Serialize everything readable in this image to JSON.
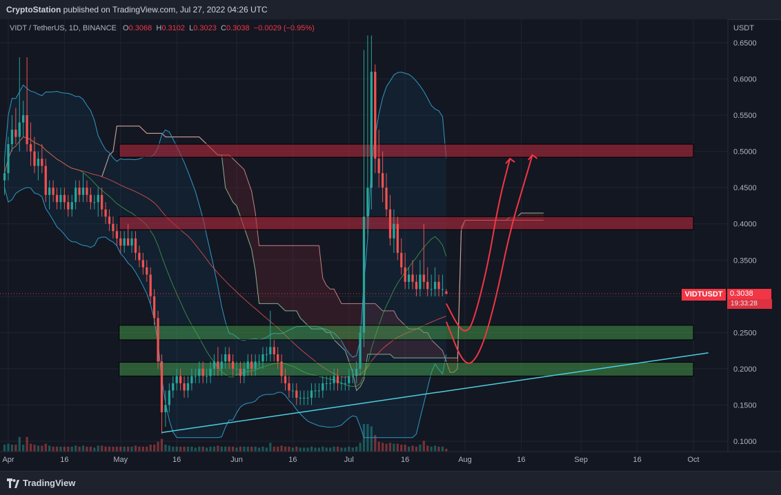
{
  "header": {
    "publisher": "CryptoStation",
    "published_text": " published on TradingView.com, Jul 27, 2022 04:26 UTC"
  },
  "legend": {
    "symbol": "VIDT / TetherUS, 1D, BINANCE",
    "open_label": "O",
    "open": "0.3068",
    "high_label": "H",
    "high": "0.3102",
    "low_label": "L",
    "low": "0.3023",
    "close_label": "C",
    "close": "0.3038",
    "change": "−0.0029 (−0.95%)"
  },
  "price_axis": {
    "unit": "USDT",
    "ticks": [
      "0.6500",
      "0.6000",
      "0.5500",
      "0.5000",
      "0.4500",
      "0.4000",
      "0.3500",
      "0.3000",
      "0.2500",
      "0.2000",
      "0.1500",
      "0.1000"
    ]
  },
  "time_axis": {
    "ticks": [
      "Apr",
      "16",
      "May",
      "16",
      "Jun",
      "16",
      "Jul",
      "16",
      "Aug",
      "16",
      "Sep",
      "16",
      "Oct"
    ]
  },
  "last_price": {
    "symbol": "VIDTUSDT",
    "value": "0.3038",
    "countdown": "19:33:28"
  },
  "footer": {
    "brand": "TradingView"
  },
  "colors": {
    "background": "#131722",
    "up": "#26a69a",
    "down": "#ef5350",
    "resistance_zone": "#b2283a",
    "support_zone": "#4caf50",
    "bollinger": "#2f9ac4",
    "trendline": "#4dd0e1",
    "projection": "#f23645"
  },
  "chart_data": {
    "type": "candlestick",
    "symbol": "VIDT / TetherUS",
    "interval": "1D",
    "exchange": "BINANCE",
    "ylim": [
      0.09,
      0.67
    ],
    "x_range": [
      "2022-03-31",
      "2022-10-05"
    ],
    "candles": [
      {
        "date": "2022-03-31",
        "o": 0.46,
        "h": 0.49,
        "l": 0.44,
        "c": 0.47
      },
      {
        "date": "2022-04-01",
        "o": 0.47,
        "h": 0.52,
        "l": 0.46,
        "c": 0.51
      },
      {
        "date": "2022-04-02",
        "o": 0.51,
        "h": 0.55,
        "l": 0.5,
        "c": 0.53
      },
      {
        "date": "2022-04-03",
        "o": 0.53,
        "h": 0.56,
        "l": 0.51,
        "c": 0.52
      },
      {
        "date": "2022-04-04",
        "o": 0.52,
        "h": 0.63,
        "l": 0.5,
        "c": 0.54
      },
      {
        "date": "2022-04-05",
        "o": 0.54,
        "h": 0.57,
        "l": 0.52,
        "c": 0.55
      },
      {
        "date": "2022-04-06",
        "o": 0.55,
        "h": 0.63,
        "l": 0.5,
        "c": 0.51
      },
      {
        "date": "2022-04-07",
        "o": 0.51,
        "h": 0.54,
        "l": 0.48,
        "c": 0.5
      },
      {
        "date": "2022-04-08",
        "o": 0.5,
        "h": 0.52,
        "l": 0.47,
        "c": 0.48
      },
      {
        "date": "2022-04-09",
        "o": 0.48,
        "h": 0.5,
        "l": 0.46,
        "c": 0.49
      },
      {
        "date": "2022-04-10",
        "o": 0.49,
        "h": 0.51,
        "l": 0.47,
        "c": 0.48
      },
      {
        "date": "2022-04-11",
        "o": 0.48,
        "h": 0.49,
        "l": 0.43,
        "c": 0.44
      },
      {
        "date": "2022-04-12",
        "o": 0.44,
        "h": 0.46,
        "l": 0.42,
        "c": 0.45
      },
      {
        "date": "2022-04-13",
        "o": 0.45,
        "h": 0.46,
        "l": 0.43,
        "c": 0.44
      },
      {
        "date": "2022-04-14",
        "o": 0.44,
        "h": 0.45,
        "l": 0.42,
        "c": 0.43
      },
      {
        "date": "2022-04-15",
        "o": 0.43,
        "h": 0.45,
        "l": 0.42,
        "c": 0.44
      },
      {
        "date": "2022-04-16",
        "o": 0.44,
        "h": 0.45,
        "l": 0.42,
        "c": 0.43
      },
      {
        "date": "2022-04-17",
        "o": 0.43,
        "h": 0.44,
        "l": 0.41,
        "c": 0.42
      },
      {
        "date": "2022-04-18",
        "o": 0.42,
        "h": 0.44,
        "l": 0.41,
        "c": 0.43
      },
      {
        "date": "2022-04-19",
        "o": 0.43,
        "h": 0.46,
        "l": 0.42,
        "c": 0.45
      },
      {
        "date": "2022-04-20",
        "o": 0.45,
        "h": 0.46,
        "l": 0.43,
        "c": 0.44
      },
      {
        "date": "2022-04-21",
        "o": 0.44,
        "h": 0.47,
        "l": 0.43,
        "c": 0.45
      },
      {
        "date": "2022-04-22",
        "o": 0.45,
        "h": 0.46,
        "l": 0.43,
        "c": 0.44
      },
      {
        "date": "2022-04-23",
        "o": 0.44,
        "h": 0.45,
        "l": 0.42,
        "c": 0.43
      },
      {
        "date": "2022-04-24",
        "o": 0.43,
        "h": 0.44,
        "l": 0.42,
        "c": 0.43
      },
      {
        "date": "2022-04-25",
        "o": 0.43,
        "h": 0.45,
        "l": 0.41,
        "c": 0.44
      },
      {
        "date": "2022-04-26",
        "o": 0.44,
        "h": 0.45,
        "l": 0.41,
        "c": 0.42
      },
      {
        "date": "2022-04-27",
        "o": 0.42,
        "h": 0.43,
        "l": 0.4,
        "c": 0.41
      },
      {
        "date": "2022-04-28",
        "o": 0.41,
        "h": 0.42,
        "l": 0.39,
        "c": 0.4
      },
      {
        "date": "2022-04-29",
        "o": 0.4,
        "h": 0.41,
        "l": 0.38,
        "c": 0.39
      },
      {
        "date": "2022-04-30",
        "o": 0.39,
        "h": 0.4,
        "l": 0.37,
        "c": 0.38
      },
      {
        "date": "2022-05-01",
        "o": 0.38,
        "h": 0.39,
        "l": 0.36,
        "c": 0.37
      },
      {
        "date": "2022-05-02",
        "o": 0.37,
        "h": 0.39,
        "l": 0.36,
        "c": 0.38
      },
      {
        "date": "2022-05-03",
        "o": 0.38,
        "h": 0.4,
        "l": 0.37,
        "c": 0.37
      },
      {
        "date": "2022-05-04",
        "o": 0.37,
        "h": 0.39,
        "l": 0.36,
        "c": 0.38
      },
      {
        "date": "2022-05-05",
        "o": 0.38,
        "h": 0.39,
        "l": 0.35,
        "c": 0.36
      },
      {
        "date": "2022-05-06",
        "o": 0.36,
        "h": 0.37,
        "l": 0.34,
        "c": 0.35
      },
      {
        "date": "2022-05-07",
        "o": 0.35,
        "h": 0.36,
        "l": 0.33,
        "c": 0.34
      },
      {
        "date": "2022-05-08",
        "o": 0.34,
        "h": 0.35,
        "l": 0.32,
        "c": 0.33
      },
      {
        "date": "2022-05-09",
        "o": 0.33,
        "h": 0.34,
        "l": 0.29,
        "c": 0.3
      },
      {
        "date": "2022-05-10",
        "o": 0.3,
        "h": 0.31,
        "l": 0.26,
        "c": 0.27
      },
      {
        "date": "2022-05-11",
        "o": 0.27,
        "h": 0.28,
        "l": 0.2,
        "c": 0.21
      },
      {
        "date": "2022-05-12",
        "o": 0.21,
        "h": 0.22,
        "l": 0.11,
        "c": 0.14
      },
      {
        "date": "2022-05-13",
        "o": 0.14,
        "h": 0.17,
        "l": 0.12,
        "c": 0.15
      },
      {
        "date": "2022-05-14",
        "o": 0.15,
        "h": 0.18,
        "l": 0.14,
        "c": 0.17
      },
      {
        "date": "2022-05-15",
        "o": 0.17,
        "h": 0.19,
        "l": 0.16,
        "c": 0.18
      },
      {
        "date": "2022-05-16",
        "o": 0.18,
        "h": 0.2,
        "l": 0.17,
        "c": 0.19
      },
      {
        "date": "2022-05-17",
        "o": 0.19,
        "h": 0.2,
        "l": 0.17,
        "c": 0.18
      },
      {
        "date": "2022-05-18",
        "o": 0.18,
        "h": 0.19,
        "l": 0.16,
        "c": 0.17
      },
      {
        "date": "2022-05-19",
        "o": 0.17,
        "h": 0.19,
        "l": 0.16,
        "c": 0.18
      },
      {
        "date": "2022-05-20",
        "o": 0.18,
        "h": 0.2,
        "l": 0.17,
        "c": 0.19
      },
      {
        "date": "2022-05-21",
        "o": 0.19,
        "h": 0.2,
        "l": 0.18,
        "c": 0.19
      },
      {
        "date": "2022-05-22",
        "o": 0.19,
        "h": 0.21,
        "l": 0.18,
        "c": 0.2
      },
      {
        "date": "2022-05-23",
        "o": 0.2,
        "h": 0.21,
        "l": 0.18,
        "c": 0.19
      },
      {
        "date": "2022-05-24",
        "o": 0.19,
        "h": 0.2,
        "l": 0.18,
        "c": 0.19
      },
      {
        "date": "2022-05-25",
        "o": 0.19,
        "h": 0.21,
        "l": 0.18,
        "c": 0.2
      },
      {
        "date": "2022-05-26",
        "o": 0.2,
        "h": 0.22,
        "l": 0.19,
        "c": 0.21
      },
      {
        "date": "2022-05-27",
        "o": 0.21,
        "h": 0.23,
        "l": 0.19,
        "c": 0.2
      },
      {
        "date": "2022-05-28",
        "o": 0.2,
        "h": 0.22,
        "l": 0.19,
        "c": 0.21
      },
      {
        "date": "2022-05-29",
        "o": 0.21,
        "h": 0.23,
        "l": 0.2,
        "c": 0.22
      },
      {
        "date": "2022-05-30",
        "o": 0.22,
        "h": 0.23,
        "l": 0.2,
        "c": 0.21
      },
      {
        "date": "2022-05-31",
        "o": 0.21,
        "h": 0.22,
        "l": 0.19,
        "c": 0.2
      },
      {
        "date": "2022-06-01",
        "o": 0.2,
        "h": 0.21,
        "l": 0.19,
        "c": 0.2
      },
      {
        "date": "2022-06-02",
        "o": 0.2,
        "h": 0.21,
        "l": 0.18,
        "c": 0.19
      },
      {
        "date": "2022-06-03",
        "o": 0.19,
        "h": 0.21,
        "l": 0.18,
        "c": 0.2
      },
      {
        "date": "2022-06-04",
        "o": 0.2,
        "h": 0.22,
        "l": 0.19,
        "c": 0.21
      },
      {
        "date": "2022-06-05",
        "o": 0.21,
        "h": 0.22,
        "l": 0.19,
        "c": 0.2
      },
      {
        "date": "2022-06-06",
        "o": 0.2,
        "h": 0.22,
        "l": 0.19,
        "c": 0.21
      },
      {
        "date": "2022-06-07",
        "o": 0.21,
        "h": 0.22,
        "l": 0.2,
        "c": 0.21
      },
      {
        "date": "2022-06-08",
        "o": 0.21,
        "h": 0.23,
        "l": 0.2,
        "c": 0.22
      },
      {
        "date": "2022-06-09",
        "o": 0.22,
        "h": 0.23,
        "l": 0.21,
        "c": 0.22
      },
      {
        "date": "2022-06-10",
        "o": 0.22,
        "h": 0.28,
        "l": 0.21,
        "c": 0.23
      },
      {
        "date": "2022-06-11",
        "o": 0.23,
        "h": 0.24,
        "l": 0.21,
        "c": 0.22
      },
      {
        "date": "2022-06-12",
        "o": 0.22,
        "h": 0.23,
        "l": 0.2,
        "c": 0.21
      },
      {
        "date": "2022-06-13",
        "o": 0.21,
        "h": 0.22,
        "l": 0.18,
        "c": 0.19
      },
      {
        "date": "2022-06-14",
        "o": 0.19,
        "h": 0.2,
        "l": 0.17,
        "c": 0.18
      },
      {
        "date": "2022-06-15",
        "o": 0.18,
        "h": 0.19,
        "l": 0.16,
        "c": 0.17
      },
      {
        "date": "2022-06-16",
        "o": 0.17,
        "h": 0.18,
        "l": 0.16,
        "c": 0.17
      },
      {
        "date": "2022-06-17",
        "o": 0.17,
        "h": 0.18,
        "l": 0.15,
        "c": 0.16
      },
      {
        "date": "2022-06-18",
        "o": 0.16,
        "h": 0.17,
        "l": 0.15,
        "c": 0.16
      },
      {
        "date": "2022-06-19",
        "o": 0.16,
        "h": 0.17,
        "l": 0.15,
        "c": 0.16
      },
      {
        "date": "2022-06-20",
        "o": 0.16,
        "h": 0.17,
        "l": 0.15,
        "c": 0.16
      },
      {
        "date": "2022-06-21",
        "o": 0.16,
        "h": 0.18,
        "l": 0.15,
        "c": 0.17
      },
      {
        "date": "2022-06-22",
        "o": 0.17,
        "h": 0.18,
        "l": 0.16,
        "c": 0.17
      },
      {
        "date": "2022-06-23",
        "o": 0.17,
        "h": 0.18,
        "l": 0.16,
        "c": 0.17
      },
      {
        "date": "2022-06-24",
        "o": 0.17,
        "h": 0.19,
        "l": 0.16,
        "c": 0.18
      },
      {
        "date": "2022-06-25",
        "o": 0.18,
        "h": 0.19,
        "l": 0.17,
        "c": 0.18
      },
      {
        "date": "2022-06-26",
        "o": 0.18,
        "h": 0.19,
        "l": 0.17,
        "c": 0.18
      },
      {
        "date": "2022-06-27",
        "o": 0.18,
        "h": 0.2,
        "l": 0.17,
        "c": 0.19
      },
      {
        "date": "2022-06-28",
        "o": 0.19,
        "h": 0.2,
        "l": 0.17,
        "c": 0.18
      },
      {
        "date": "2022-06-29",
        "o": 0.18,
        "h": 0.19,
        "l": 0.17,
        "c": 0.18
      },
      {
        "date": "2022-06-30",
        "o": 0.18,
        "h": 0.19,
        "l": 0.17,
        "c": 0.18
      },
      {
        "date": "2022-07-01",
        "o": 0.18,
        "h": 0.2,
        "l": 0.17,
        "c": 0.19
      },
      {
        "date": "2022-07-02",
        "o": 0.19,
        "h": 0.2,
        "l": 0.18,
        "c": 0.19
      },
      {
        "date": "2022-07-03",
        "o": 0.19,
        "h": 0.21,
        "l": 0.18,
        "c": 0.2
      },
      {
        "date": "2022-07-04",
        "o": 0.2,
        "h": 0.26,
        "l": 0.19,
        "c": 0.25
      },
      {
        "date": "2022-07-05",
        "o": 0.25,
        "h": 0.64,
        "l": 0.23,
        "c": 0.41
      },
      {
        "date": "2022-07-06",
        "o": 0.41,
        "h": 0.66,
        "l": 0.38,
        "c": 0.45
      },
      {
        "date": "2022-07-07",
        "o": 0.45,
        "h": 0.66,
        "l": 0.42,
        "c": 0.61
      },
      {
        "date": "2022-07-08",
        "o": 0.61,
        "h": 0.62,
        "l": 0.47,
        "c": 0.49
      },
      {
        "date": "2022-07-09",
        "o": 0.49,
        "h": 0.53,
        "l": 0.45,
        "c": 0.47
      },
      {
        "date": "2022-07-10",
        "o": 0.47,
        "h": 0.5,
        "l": 0.43,
        "c": 0.45
      },
      {
        "date": "2022-07-11",
        "o": 0.45,
        "h": 0.47,
        "l": 0.41,
        "c": 0.42
      },
      {
        "date": "2022-07-12",
        "o": 0.42,
        "h": 0.44,
        "l": 0.37,
        "c": 0.38
      },
      {
        "date": "2022-07-13",
        "o": 0.38,
        "h": 0.42,
        "l": 0.36,
        "c": 0.4
      },
      {
        "date": "2022-07-14",
        "o": 0.4,
        "h": 0.41,
        "l": 0.35,
        "c": 0.36
      },
      {
        "date": "2022-07-15",
        "o": 0.36,
        "h": 0.38,
        "l": 0.33,
        "c": 0.34
      },
      {
        "date": "2022-07-16",
        "o": 0.34,
        "h": 0.36,
        "l": 0.31,
        "c": 0.32
      },
      {
        "date": "2022-07-17",
        "o": 0.32,
        "h": 0.34,
        "l": 0.31,
        "c": 0.33
      },
      {
        "date": "2022-07-18",
        "o": 0.33,
        "h": 0.35,
        "l": 0.31,
        "c": 0.32
      },
      {
        "date": "2022-07-19",
        "o": 0.32,
        "h": 0.33,
        "l": 0.3,
        "c": 0.31
      },
      {
        "date": "2022-07-20",
        "o": 0.31,
        "h": 0.35,
        "l": 0.3,
        "c": 0.33
      },
      {
        "date": "2022-07-21",
        "o": 0.33,
        "h": 0.4,
        "l": 0.31,
        "c": 0.32
      },
      {
        "date": "2022-07-22",
        "o": 0.32,
        "h": 0.34,
        "l": 0.3,
        "c": 0.31
      },
      {
        "date": "2022-07-23",
        "o": 0.31,
        "h": 0.33,
        "l": 0.3,
        "c": 0.31
      },
      {
        "date": "2022-07-24",
        "o": 0.31,
        "h": 0.34,
        "l": 0.3,
        "c": 0.32
      },
      {
        "date": "2022-07-25",
        "o": 0.32,
        "h": 0.33,
        "l": 0.3,
        "c": 0.31
      },
      {
        "date": "2022-07-26",
        "o": 0.31,
        "h": 0.33,
        "l": 0.3,
        "c": 0.31
      },
      {
        "date": "2022-07-27",
        "o": 0.3068,
        "h": 0.3102,
        "l": 0.3023,
        "c": 0.3038
      }
    ],
    "zones": [
      {
        "kind": "resistance",
        "low": 0.492,
        "high": 0.51,
        "from": "2022-05-01",
        "to": "2022-10-01"
      },
      {
        "kind": "resistance",
        "low": 0.392,
        "high": 0.41,
        "from": "2022-05-01",
        "to": "2022-10-01"
      },
      {
        "kind": "support",
        "low": 0.24,
        "high": 0.26,
        "from": "2022-05-01",
        "to": "2022-10-01"
      },
      {
        "kind": "support",
        "low": 0.19,
        "high": 0.209,
        "from": "2022-05-01",
        "to": "2022-10-01"
      }
    ],
    "trendline": {
      "points": [
        [
          "2022-05-12",
          0.112
        ],
        [
          "2022-10-05",
          0.222
        ]
      ]
    },
    "projections": [
      {
        "points": [
          [
            "2022-07-27",
            0.29
          ],
          [
            "2022-07-30",
            0.26
          ],
          [
            "2022-08-01",
            0.25
          ],
          [
            "2022-08-03",
            0.26
          ],
          [
            "2022-08-07",
            0.34
          ],
          [
            "2022-08-10",
            0.43
          ],
          [
            "2022-08-13",
            0.49
          ]
        ]
      },
      {
        "points": [
          [
            "2022-07-27",
            0.265
          ],
          [
            "2022-08-01",
            0.2
          ],
          [
            "2022-08-05",
            0.22
          ],
          [
            "2022-08-09",
            0.29
          ],
          [
            "2022-08-13",
            0.39
          ],
          [
            "2022-08-17",
            0.46
          ],
          [
            "2022-08-19",
            0.495
          ]
        ]
      }
    ],
    "current_price": 0.3038,
    "grid": true
  }
}
